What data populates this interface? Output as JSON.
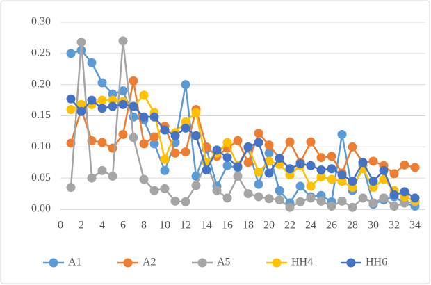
{
  "chart_data": {
    "type": "line",
    "x": [
      1,
      2,
      3,
      4,
      5,
      6,
      7,
      8,
      9,
      10,
      11,
      12,
      13,
      14,
      15,
      16,
      17,
      18,
      19,
      20,
      21,
      22,
      23,
      24,
      25,
      26,
      27,
      28,
      29,
      30,
      31,
      32,
      33,
      34
    ],
    "xlim": [
      0,
      35
    ],
    "xticks": [
      0,
      2,
      4,
      6,
      8,
      10,
      12,
      14,
      16,
      18,
      20,
      22,
      24,
      26,
      28,
      30,
      32,
      34
    ],
    "ylim": [
      0,
      0.3
    ],
    "yticks": [
      {
        "value": 0,
        "label": "0.00"
      },
      {
        "value": 0.05,
        "label": "0.05"
      },
      {
        "value": 0.1,
        "label": "0.10"
      },
      {
        "value": 0.15,
        "label": "0.15"
      },
      {
        "value": 0.2,
        "label": "0.20"
      },
      {
        "value": 0.25,
        "label": "0.25"
      },
      {
        "value": 0.3,
        "label": "0.30"
      }
    ],
    "grid": true,
    "legend": "bottom",
    "series": [
      {
        "name": "A1",
        "color": "#5b9bd5",
        "values": [
          0.25,
          0.255,
          0.235,
          0.203,
          0.185,
          0.19,
          0.148,
          0.143,
          0.105,
          0.062,
          0.107,
          0.2,
          0.053,
          0.097,
          0.037,
          0.07,
          0.067,
          0.098,
          0.04,
          0.09,
          0.03,
          0.01,
          0.037,
          0.02,
          0.022,
          0.012,
          0.12,
          0.03,
          0.07,
          0.008,
          0.015,
          0.02,
          0.01,
          0.005
        ]
      },
      {
        "name": "A2",
        "color": "#ed7d31",
        "values": [
          0.106,
          0.16,
          0.11,
          0.107,
          0.098,
          0.12,
          0.206,
          0.105,
          0.116,
          0.133,
          0.09,
          0.092,
          0.16,
          0.1,
          0.085,
          0.098,
          0.11,
          0.075,
          0.122,
          0.103,
          0.082,
          0.108,
          0.075,
          0.108,
          0.083,
          0.085,
          0.058,
          0.1,
          0.075,
          0.077,
          0.07,
          0.057,
          0.071,
          0.067
        ]
      },
      {
        "name": "A5",
        "color": "#a5a5a5",
        "values": [
          0.035,
          0.268,
          0.05,
          0.062,
          0.053,
          0.27,
          0.115,
          0.048,
          0.03,
          0.033,
          0.013,
          0.012,
          0.038,
          0.075,
          0.03,
          0.018,
          0.053,
          0.025,
          0.02,
          0.017,
          0.015,
          0.003,
          0.012,
          0.018,
          0.013,
          0.005,
          0.013,
          0.003,
          0.018,
          0.01,
          0.018,
          0.005,
          0.01,
          0.012
        ]
      },
      {
        "name": "HH4",
        "color": "#ffc000",
        "values": [
          0.16,
          0.168,
          0.168,
          0.175,
          0.175,
          0.173,
          0.165,
          0.183,
          0.155,
          0.08,
          0.123,
          0.14,
          0.155,
          0.075,
          0.09,
          0.107,
          0.07,
          0.1,
          0.06,
          0.077,
          0.072,
          0.055,
          0.07,
          0.037,
          0.052,
          0.048,
          0.045,
          0.035,
          0.065,
          0.035,
          0.048,
          0.03,
          0.02,
          0.013
        ]
      },
      {
        "name": "HH6",
        "color": "#4472c4",
        "values": [
          0.177,
          0.157,
          0.175,
          0.162,
          0.165,
          0.168,
          0.165,
          0.148,
          0.148,
          0.127,
          0.118,
          0.13,
          0.118,
          0.063,
          0.095,
          0.083,
          0.068,
          0.1,
          0.107,
          0.058,
          0.082,
          0.065,
          0.073,
          0.07,
          0.063,
          0.065,
          0.055,
          0.045,
          0.075,
          0.045,
          0.062,
          0.023,
          0.028,
          0.018
        ]
      }
    ]
  }
}
